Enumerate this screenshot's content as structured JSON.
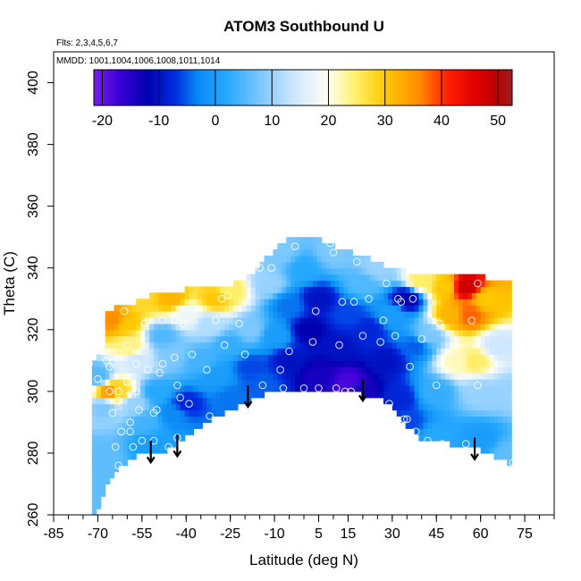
{
  "chart_data": {
    "type": "heatmap",
    "title": "ATOM3 Southbound U",
    "subtitle_flights": "Flts: 2,3,4,5,6,7",
    "subtitle_dates": "MMDD: 1001,1004,1006,1008,1011,1014",
    "xlabel": "Latitude (deg N)",
    "ylabel": "Theta (C)",
    "xlim": [
      -85,
      85
    ],
    "ylim": [
      260,
      410
    ],
    "x_tick_values": [
      -85,
      -70,
      -55,
      -40,
      -25,
      -10,
      5,
      15,
      30,
      45,
      60,
      75
    ],
    "x_tick_labels": [
      "-85",
      "-70",
      "-55",
      "-40",
      "-25",
      "-10",
      "5",
      "15",
      "30",
      "45",
      "60",
      "75"
    ],
    "x_minor_step": 5,
    "y_tick_values": [
      260,
      280,
      300,
      320,
      340,
      360,
      380,
      400
    ],
    "y_tick_labels": [
      "260",
      "280",
      "300",
      "320",
      "340",
      "360",
      "380",
      "400"
    ],
    "colorbar": {
      "min": -21.5,
      "max": 52.5,
      "tick_values": [
        -20,
        -10,
        0,
        10,
        20,
        30,
        40,
        50
      ],
      "tick_labels": [
        "-20",
        "-10",
        "0",
        "10",
        "20",
        "30",
        "40",
        "50"
      ],
      "color_stops": [
        {
          "v": -21.5,
          "c": "#7a1fe6"
        },
        {
          "v": -17,
          "c": "#3a00d8"
        },
        {
          "v": -12,
          "c": "#0000b0"
        },
        {
          "v": -7,
          "c": "#0030e0"
        },
        {
          "v": -3,
          "c": "#0a8cf5"
        },
        {
          "v": 2,
          "c": "#26a8ff"
        },
        {
          "v": 8,
          "c": "#7cc8ff"
        },
        {
          "v": 14,
          "c": "#cfe8ff"
        },
        {
          "v": 20,
          "c": "#fffff2"
        },
        {
          "v": 25,
          "c": "#ffee66"
        },
        {
          "v": 30,
          "c": "#ffc800"
        },
        {
          "v": 36,
          "c": "#ff8c00"
        },
        {
          "v": 41,
          "c": "#ff2000"
        },
        {
          "v": 46,
          "c": "#e00000"
        },
        {
          "v": 50,
          "c": "#b80000"
        },
        {
          "v": 52.5,
          "c": "#a02020"
        }
      ]
    },
    "data_region": {
      "upper_boundary": [
        [
          -72,
          310
        ],
        [
          -68,
          315
        ],
        [
          -67,
          326
        ],
        [
          -62,
          328
        ],
        [
          -57,
          329
        ],
        [
          -50,
          332
        ],
        [
          -40,
          333
        ],
        [
          -30,
          333
        ],
        [
          -25,
          334
        ],
        [
          -18,
          338
        ],
        [
          -12,
          344
        ],
        [
          -6,
          349
        ],
        [
          6,
          349
        ],
        [
          12,
          346
        ],
        [
          20,
          344
        ],
        [
          25,
          342
        ],
        [
          30,
          340
        ],
        [
          40,
          338
        ],
        [
          45,
          339
        ],
        [
          55,
          338
        ],
        [
          62,
          337
        ],
        [
          71,
          335
        ],
        [
          71,
          276
        ]
      ],
      "lower_boundary": [
        [
          -70,
          261
        ],
        [
          -66,
          272
        ],
        [
          -60,
          277
        ],
        [
          -55,
          280
        ],
        [
          -50,
          279
        ],
        [
          -45,
          282
        ],
        [
          -38,
          287
        ],
        [
          -30,
          292
        ],
        [
          -22,
          295
        ],
        [
          -16,
          298
        ],
        [
          -10,
          301
        ],
        [
          0,
          301
        ],
        [
          10,
          301
        ],
        [
          20,
          299
        ],
        [
          30,
          296
        ],
        [
          35,
          289
        ],
        [
          40,
          284
        ],
        [
          50,
          283
        ],
        [
          60,
          281
        ],
        [
          71,
          276
        ]
      ]
    },
    "field": [
      {
        "lat": -70,
        "theta": 305,
        "u": 5
      },
      {
        "lat": -68,
        "theta": 295,
        "u": 8
      },
      {
        "lat": -69,
        "theta": 280,
        "u": 6
      },
      {
        "lat": -66,
        "theta": 300,
        "u": 35
      },
      {
        "lat": -63,
        "theta": 300,
        "u": 28
      },
      {
        "lat": -64,
        "theta": 323,
        "u": 36
      },
      {
        "lat": -61,
        "theta": 322,
        "u": 30
      },
      {
        "lat": -59,
        "theta": 315,
        "u": 24
      },
      {
        "lat": -56,
        "theta": 310,
        "u": 14
      },
      {
        "lat": -58,
        "theta": 296,
        "u": 10
      },
      {
        "lat": -54,
        "theta": 290,
        "u": 4
      },
      {
        "lat": -52,
        "theta": 283,
        "u": 0
      },
      {
        "lat": -50,
        "theta": 300,
        "u": 2
      },
      {
        "lat": -48,
        "theta": 318,
        "u": 5
      },
      {
        "lat": -45,
        "theta": 312,
        "u": 8
      },
      {
        "lat": -44,
        "theta": 293,
        "u": -3
      },
      {
        "lat": -40,
        "theta": 296,
        "u": -8
      },
      {
        "lat": -40,
        "theta": 325,
        "u": 18
      },
      {
        "lat": -45,
        "theta": 330,
        "u": 32
      },
      {
        "lat": -55,
        "theta": 330,
        "u": 28
      },
      {
        "lat": -30,
        "theta": 330,
        "u": 30
      },
      {
        "lat": -25,
        "theta": 333,
        "u": 25
      },
      {
        "lat": -32,
        "theta": 322,
        "u": 12
      },
      {
        "lat": -35,
        "theta": 310,
        "u": 4
      },
      {
        "lat": -30,
        "theta": 305,
        "u": 0
      },
      {
        "lat": -25,
        "theta": 298,
        "u": -4
      },
      {
        "lat": -25,
        "theta": 315,
        "u": 3
      },
      {
        "lat": -18,
        "theta": 320,
        "u": 8
      },
      {
        "lat": -18,
        "theta": 308,
        "u": -6
      },
      {
        "lat": -15,
        "theta": 302,
        "u": -5
      },
      {
        "lat": -12,
        "theta": 335,
        "u": 10
      },
      {
        "lat": -8,
        "theta": 345,
        "u": 8
      },
      {
        "lat": -10,
        "theta": 318,
        "u": 0
      },
      {
        "lat": -5,
        "theta": 310,
        "u": -10
      },
      {
        "lat": -5,
        "theta": 328,
        "u": -4
      },
      {
        "lat": 0,
        "theta": 340,
        "u": 2
      },
      {
        "lat": 2,
        "theta": 320,
        "u": -12
      },
      {
        "lat": 5,
        "theta": 305,
        "u": -14
      },
      {
        "lat": 5,
        "theta": 330,
        "u": -10
      },
      {
        "lat": 10,
        "theta": 345,
        "u": 8
      },
      {
        "lat": 12,
        "theta": 315,
        "u": -10
      },
      {
        "lat": 15,
        "theta": 325,
        "u": -6
      },
      {
        "lat": 15,
        "theta": 303,
        "u": -18
      },
      {
        "lat": 20,
        "theta": 300,
        "u": -14
      },
      {
        "lat": 20,
        "theta": 335,
        "u": 5
      },
      {
        "lat": 22,
        "theta": 320,
        "u": -8
      },
      {
        "lat": 25,
        "theta": 340,
        "u": 10
      },
      {
        "lat": 28,
        "theta": 310,
        "u": -10
      },
      {
        "lat": 30,
        "theta": 325,
        "u": 0
      },
      {
        "lat": 32,
        "theta": 298,
        "u": -8
      },
      {
        "lat": 35,
        "theta": 330,
        "u": -12
      },
      {
        "lat": 35,
        "theta": 290,
        "u": -6
      },
      {
        "lat": 38,
        "theta": 315,
        "u": -5
      },
      {
        "lat": 40,
        "theta": 336,
        "u": 25
      },
      {
        "lat": 42,
        "theta": 318,
        "u": 8
      },
      {
        "lat": 45,
        "theta": 300,
        "u": 3
      },
      {
        "lat": 45,
        "theta": 285,
        "u": 2
      },
      {
        "lat": 48,
        "theta": 334,
        "u": 30
      },
      {
        "lat": 50,
        "theta": 325,
        "u": 32
      },
      {
        "lat": 52,
        "theta": 310,
        "u": 22
      },
      {
        "lat": 55,
        "theta": 334,
        "u": 48
      },
      {
        "lat": 56,
        "theta": 325,
        "u": 38
      },
      {
        "lat": 58,
        "theta": 310,
        "u": 25
      },
      {
        "lat": 60,
        "theta": 300,
        "u": 10
      },
      {
        "lat": 62,
        "theta": 330,
        "u": 30
      },
      {
        "lat": 60,
        "theta": 285,
        "u": 0
      },
      {
        "lat": 66,
        "theta": 315,
        "u": 14
      },
      {
        "lat": 70,
        "theta": 280,
        "u": 6
      },
      {
        "lat": 70,
        "theta": 300,
        "u": 10
      }
    ],
    "observation_points": [
      {
        "lat": -73,
        "theta": 309
      },
      {
        "lat": -70,
        "theta": 304
      },
      {
        "lat": -67,
        "theta": 310
      },
      {
        "lat": -66,
        "theta": 308
      },
      {
        "lat": -66,
        "theta": 300
      },
      {
        "lat": -65,
        "theta": 293
      },
      {
        "lat": -63,
        "theta": 300
      },
      {
        "lat": -63,
        "theta": 297
      },
      {
        "lat": -62,
        "theta": 287
      },
      {
        "lat": -64,
        "theta": 282
      },
      {
        "lat": -63,
        "theta": 276
      },
      {
        "lat": -64,
        "theta": 266
      },
      {
        "lat": -60,
        "theta": 303
      },
      {
        "lat": -61,
        "theta": 326
      },
      {
        "lat": -60,
        "theta": 315
      },
      {
        "lat": -59,
        "theta": 290
      },
      {
        "lat": -59,
        "theta": 287
      },
      {
        "lat": -58,
        "theta": 282
      },
      {
        "lat": -57,
        "theta": 309
      },
      {
        "lat": -57,
        "theta": 300
      },
      {
        "lat": -56,
        "theta": 294
      },
      {
        "lat": -55,
        "theta": 284
      },
      {
        "lat": -54,
        "theta": 322
      },
      {
        "lat": -53,
        "theta": 307
      },
      {
        "lat": -51,
        "theta": 293
      },
      {
        "lat": -51,
        "theta": 284
      },
      {
        "lat": -50,
        "theta": 294
      },
      {
        "lat": -49,
        "theta": 306
      },
      {
        "lat": -48,
        "theta": 323
      },
      {
        "lat": -48,
        "theta": 309
      },
      {
        "lat": -47,
        "theta": 278
      },
      {
        "lat": -46,
        "theta": 282
      },
      {
        "lat": -44,
        "theta": 323
      },
      {
        "lat": -44,
        "theta": 311
      },
      {
        "lat": -43,
        "theta": 302
      },
      {
        "lat": -42,
        "theta": 298
      },
      {
        "lat": -43,
        "theta": 285
      },
      {
        "lat": -41,
        "theta": 322
      },
      {
        "lat": -39,
        "theta": 296
      },
      {
        "lat": -38,
        "theta": 312
      },
      {
        "lat": -33,
        "theta": 307
      },
      {
        "lat": -32,
        "theta": 292
      },
      {
        "lat": -30,
        "theta": 323
      },
      {
        "lat": -28,
        "theta": 330
      },
      {
        "lat": -27,
        "theta": 315
      },
      {
        "lat": -26,
        "theta": 331
      },
      {
        "lat": -22,
        "theta": 322
      },
      {
        "lat": -20,
        "theta": 312
      },
      {
        "lat": -15,
        "theta": 340
      },
      {
        "lat": -14,
        "theta": 302
      },
      {
        "lat": -11,
        "theta": 340
      },
      {
        "lat": -10,
        "theta": 349
      },
      {
        "lat": -8,
        "theta": 307
      },
      {
        "lat": -7,
        "theta": 301
      },
      {
        "lat": -5,
        "theta": 313
      },
      {
        "lat": -3,
        "theta": 347
      },
      {
        "lat": 0,
        "theta": 301
      },
      {
        "lat": 3,
        "theta": 316
      },
      {
        "lat": 4,
        "theta": 326
      },
      {
        "lat": 5,
        "theta": 301
      },
      {
        "lat": 9,
        "theta": 348
      },
      {
        "lat": 10,
        "theta": 345
      },
      {
        "lat": 11,
        "theta": 301
      },
      {
        "lat": 12,
        "theta": 315
      },
      {
        "lat": 13,
        "theta": 329
      },
      {
        "lat": 14,
        "theta": 300
      },
      {
        "lat": 16,
        "theta": 300
      },
      {
        "lat": 17,
        "theta": 329
      },
      {
        "lat": 18,
        "theta": 342
      },
      {
        "lat": 20,
        "theta": 318
      },
      {
        "lat": 22,
        "theta": 330
      },
      {
        "lat": 26,
        "theta": 316
      },
      {
        "lat": 27,
        "theta": 323
      },
      {
        "lat": 28,
        "theta": 335
      },
      {
        "lat": 29,
        "theta": 296
      },
      {
        "lat": 31,
        "theta": 318
      },
      {
        "lat": 32,
        "theta": 330
      },
      {
        "lat": 33,
        "theta": 329
      },
      {
        "lat": 34,
        "theta": 291
      },
      {
        "lat": 35,
        "theta": 291
      },
      {
        "lat": 36,
        "theta": 308
      },
      {
        "lat": 37,
        "theta": 330
      },
      {
        "lat": 38,
        "theta": 287
      },
      {
        "lat": 40,
        "theta": 317
      },
      {
        "lat": 42,
        "theta": 284
      },
      {
        "lat": 45,
        "theta": 302
      },
      {
        "lat": 46,
        "theta": 322
      },
      {
        "lat": 47,
        "theta": 283
      },
      {
        "lat": 55,
        "theta": 283
      },
      {
        "lat": 57,
        "theta": 323
      },
      {
        "lat": 59,
        "theta": 302
      },
      {
        "lat": 59,
        "theta": 335
      },
      {
        "lat": 71,
        "theta": 277
      }
    ],
    "arrows": [
      {
        "lat": -52,
        "theta_top": 284,
        "theta_tip": 277
      },
      {
        "lat": -43,
        "theta_top": 286,
        "theta_tip": 279
      },
      {
        "lat": -19,
        "theta_top": 302,
        "theta_tip": 295
      },
      {
        "lat": 20,
        "theta_top": 304,
        "theta_tip": 297
      },
      {
        "lat": 58,
        "theta_top": 285,
        "theta_tip": 278
      }
    ]
  }
}
